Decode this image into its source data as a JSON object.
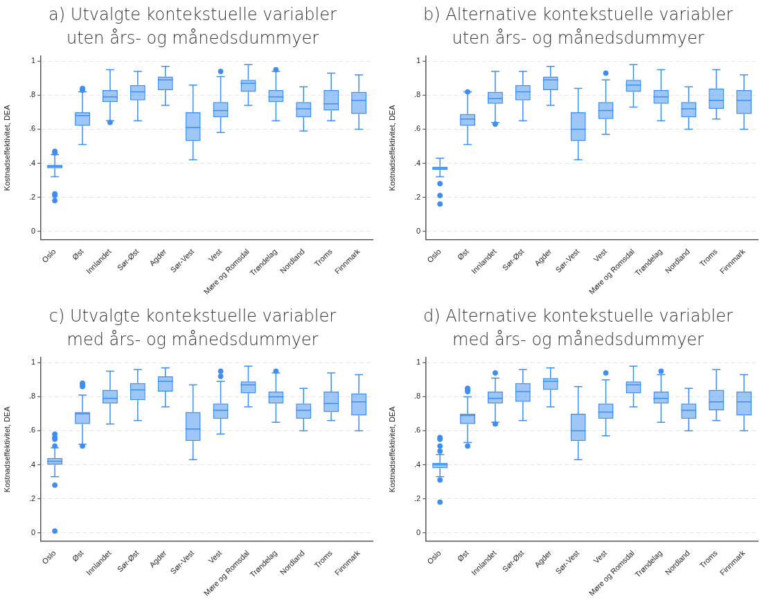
{
  "chart_data": [
    {
      "type": "box",
      "title": "a) Utvalgte kontekstuelle variabler uten års- og månedsdummyer",
      "ylabel": "Kostnadseffektivitet, DEA",
      "color": "#3d8ef0",
      "grid": "y",
      "ylim": [
        -0.05,
        1.03
      ],
      "yticks": [
        {
          "value": 0,
          "label": "0"
        },
        {
          "value": 0.2,
          "label": ".2"
        },
        {
          "value": 0.4,
          "label": ".4"
        },
        {
          "value": 0.6,
          "label": ".6"
        },
        {
          "value": 0.8,
          "label": ".8"
        },
        {
          "value": 1,
          "label": "1"
        }
      ],
      "categories": [
        "Oslo",
        "Øst",
        "Innlandet",
        "Sør-Øst",
        "Agder",
        "Sør-Vest",
        "Vest",
        "Møre og Romsdal",
        "Trøndelag",
        "Nordland",
        "Troms",
        "Finnmark"
      ],
      "boxes": [
        {
          "low": 0.32,
          "q1": 0.37,
          "median": 0.38,
          "q3": 0.39,
          "high": 0.45,
          "outliers": [
            0.47,
            0.46,
            0.22,
            0.21,
            0.18
          ]
        },
        {
          "low": 0.51,
          "q1": 0.62,
          "median": 0.68,
          "q3": 0.7,
          "high": 0.82,
          "outliers": [
            0.84,
            0.83
          ]
        },
        {
          "low": 0.65,
          "q1": 0.76,
          "median": 0.79,
          "q3": 0.83,
          "high": 0.95,
          "outliers": [
            0.64
          ]
        },
        {
          "low": 0.65,
          "q1": 0.77,
          "median": 0.82,
          "q3": 0.86,
          "high": 0.94
        },
        {
          "low": 0.74,
          "q1": 0.83,
          "median": 0.89,
          "q3": 0.91,
          "high": 0.97
        },
        {
          "low": 0.42,
          "q1": 0.53,
          "median": 0.61,
          "q3": 0.7,
          "high": 0.86
        },
        {
          "low": 0.58,
          "q1": 0.67,
          "median": 0.71,
          "q3": 0.76,
          "high": 0.91,
          "outliers": [
            0.94
          ]
        },
        {
          "low": 0.74,
          "q1": 0.82,
          "median": 0.87,
          "q3": 0.89,
          "high": 0.98
        },
        {
          "low": 0.65,
          "q1": 0.76,
          "median": 0.79,
          "q3": 0.83,
          "high": 0.94,
          "outliers": [
            0.95
          ]
        },
        {
          "low": 0.59,
          "q1": 0.67,
          "median": 0.72,
          "q3": 0.76,
          "high": 0.85
        },
        {
          "low": 0.65,
          "q1": 0.71,
          "median": 0.75,
          "q3": 0.83,
          "high": 0.93
        },
        {
          "low": 0.6,
          "q1": 0.69,
          "median": 0.77,
          "q3": 0.82,
          "high": 0.92
        }
      ]
    },
    {
      "type": "box",
      "title": "b) Alternative kontekstuelle variabler uten års- og månedsdummyer",
      "ylabel": "Kostnadseffektivitet, DEA",
      "color": "#3d8ef0",
      "grid": "y",
      "ylim": [
        -0.05,
        1.03
      ],
      "yticks": [
        {
          "value": 0,
          "label": "0"
        },
        {
          "value": 0.2,
          "label": ".2"
        },
        {
          "value": 0.4,
          "label": ".4"
        },
        {
          "value": 0.6,
          "label": ".6"
        },
        {
          "value": 0.8,
          "label": ".8"
        },
        {
          "value": 1,
          "label": "1"
        }
      ],
      "categories": [
        "Oslo",
        "Øst",
        "Innlandet",
        "Sør-Øst",
        "Agder",
        "Sør-Vest",
        "Vest",
        "Møre og Romsdal",
        "Trøndelag",
        "Nordland",
        "Troms",
        "Finnmark"
      ],
      "boxes": [
        {
          "low": 0.32,
          "q1": 0.36,
          "median": 0.37,
          "q3": 0.38,
          "high": 0.43,
          "outliers": [
            0.28,
            0.21,
            0.16
          ]
        },
        {
          "low": 0.51,
          "q1": 0.62,
          "median": 0.66,
          "q3": 0.69,
          "high": 0.82,
          "outliers": [
            0.82
          ]
        },
        {
          "low": 0.64,
          "q1": 0.75,
          "median": 0.78,
          "q3": 0.82,
          "high": 0.94,
          "outliers": [
            0.63
          ]
        },
        {
          "low": 0.65,
          "q1": 0.77,
          "median": 0.82,
          "q3": 0.86,
          "high": 0.94
        },
        {
          "low": 0.74,
          "q1": 0.83,
          "median": 0.89,
          "q3": 0.91,
          "high": 0.97
        },
        {
          "low": 0.42,
          "q1": 0.53,
          "median": 0.6,
          "q3": 0.7,
          "high": 0.84
        },
        {
          "low": 0.57,
          "q1": 0.66,
          "median": 0.71,
          "q3": 0.76,
          "high": 0.89,
          "outliers": [
            0.93
          ]
        },
        {
          "low": 0.73,
          "q1": 0.82,
          "median": 0.86,
          "q3": 0.89,
          "high": 0.98
        },
        {
          "low": 0.65,
          "q1": 0.75,
          "median": 0.79,
          "q3": 0.83,
          "high": 0.95
        },
        {
          "low": 0.6,
          "q1": 0.67,
          "median": 0.72,
          "q3": 0.76,
          "high": 0.85
        },
        {
          "low": 0.66,
          "q1": 0.72,
          "median": 0.77,
          "q3": 0.84,
          "high": 0.95
        },
        {
          "low": 0.6,
          "q1": 0.69,
          "median": 0.77,
          "q3": 0.83,
          "high": 0.92
        }
      ]
    },
    {
      "type": "box",
      "title": "c) Utvalgte kontekstuelle variabler med års- og månedsdummyer",
      "ylabel": "Kostnadseffektivitet, DEA",
      "color": "#3d8ef0",
      "grid": "y",
      "ylim": [
        -0.05,
        1.03
      ],
      "yticks": [
        {
          "value": 0,
          "label": "0"
        },
        {
          "value": 0.2,
          "label": ".2"
        },
        {
          "value": 0.4,
          "label": ".4"
        },
        {
          "value": 0.6,
          "label": ".6"
        },
        {
          "value": 0.8,
          "label": ".8"
        },
        {
          "value": 1,
          "label": "1"
        }
      ],
      "categories": [
        "Oslo",
        "Øst",
        "Innlandet",
        "Sør-Øst",
        "Agder",
        "Sør-Vest",
        "Vest",
        "Møre og Romsdal",
        "Trøndelag",
        "Nordland",
        "Troms",
        "Finnmark"
      ],
      "boxes": [
        {
          "low": 0.33,
          "q1": 0.4,
          "median": 0.42,
          "q3": 0.44,
          "high": 0.5,
          "outliers": [
            0.58,
            0.56,
            0.55,
            0.51,
            0.28,
            0.01
          ]
        },
        {
          "low": 0.52,
          "q1": 0.64,
          "median": 0.7,
          "q3": 0.71,
          "high": 0.81,
          "outliers": [
            0.88,
            0.87,
            0.86,
            0.51
          ]
        },
        {
          "low": 0.64,
          "q1": 0.76,
          "median": 0.79,
          "q3": 0.84,
          "high": 0.95
        },
        {
          "low": 0.66,
          "q1": 0.78,
          "median": 0.84,
          "q3": 0.88,
          "high": 0.96
        },
        {
          "low": 0.74,
          "q1": 0.83,
          "median": 0.89,
          "q3": 0.92,
          "high": 0.97
        },
        {
          "low": 0.43,
          "q1": 0.54,
          "median": 0.61,
          "q3": 0.71,
          "high": 0.87
        },
        {
          "low": 0.58,
          "q1": 0.67,
          "median": 0.72,
          "q3": 0.76,
          "high": 0.89,
          "outliers": [
            0.95,
            0.92
          ]
        },
        {
          "low": 0.74,
          "q1": 0.82,
          "median": 0.87,
          "q3": 0.89,
          "high": 0.98
        },
        {
          "low": 0.65,
          "q1": 0.76,
          "median": 0.8,
          "q3": 0.83,
          "high": 0.94,
          "outliers": [
            0.95
          ]
        },
        {
          "low": 0.6,
          "q1": 0.67,
          "median": 0.72,
          "q3": 0.76,
          "high": 0.85
        },
        {
          "low": 0.66,
          "q1": 0.71,
          "median": 0.76,
          "q3": 0.83,
          "high": 0.94
        },
        {
          "low": 0.6,
          "q1": 0.69,
          "median": 0.77,
          "q3": 0.82,
          "high": 0.93
        }
      ]
    },
    {
      "type": "box",
      "title": "d) Alternative kontekstuelle variabler med års- og månedsdummyer",
      "ylabel": "Kostnadseffektivitet, DEA",
      "color": "#3d8ef0",
      "grid": "y",
      "ylim": [
        -0.05,
        1.03
      ],
      "yticks": [
        {
          "value": 0,
          "label": "0"
        },
        {
          "value": 0.2,
          "label": ".2"
        },
        {
          "value": 0.4,
          "label": ".4"
        },
        {
          "value": 0.6,
          "label": ".6"
        },
        {
          "value": 0.8,
          "label": ".8"
        },
        {
          "value": 1,
          "label": "1"
        }
      ],
      "categories": [
        "Oslo",
        "Øst",
        "Innlandet",
        "Sør-Øst",
        "Agder",
        "Sør-Vest",
        "Vest",
        "Møre og Romsdal",
        "Trøndelag",
        "Nordland",
        "Troms",
        "Finnmark"
      ],
      "boxes": [
        {
          "low": 0.33,
          "q1": 0.38,
          "median": 0.4,
          "q3": 0.41,
          "high": 0.46,
          "outliers": [
            0.56,
            0.55,
            0.51,
            0.48,
            0.31,
            0.18
          ]
        },
        {
          "low": 0.53,
          "q1": 0.64,
          "median": 0.69,
          "q3": 0.7,
          "high": 0.8,
          "outliers": [
            0.85,
            0.84,
            0.83,
            0.51
          ]
        },
        {
          "low": 0.65,
          "q1": 0.76,
          "median": 0.79,
          "q3": 0.83,
          "high": 0.91,
          "outliers": [
            0.94,
            0.64
          ]
        },
        {
          "low": 0.66,
          "q1": 0.77,
          "median": 0.83,
          "q3": 0.88,
          "high": 0.96
        },
        {
          "low": 0.74,
          "q1": 0.84,
          "median": 0.89,
          "q3": 0.91,
          "high": 0.97
        },
        {
          "low": 0.43,
          "q1": 0.54,
          "median": 0.6,
          "q3": 0.7,
          "high": 0.86
        },
        {
          "low": 0.57,
          "q1": 0.67,
          "median": 0.71,
          "q3": 0.76,
          "high": 0.9,
          "outliers": [
            0.94
          ]
        },
        {
          "low": 0.74,
          "q1": 0.82,
          "median": 0.87,
          "q3": 0.89,
          "high": 0.98
        },
        {
          "low": 0.65,
          "q1": 0.76,
          "median": 0.79,
          "q3": 0.83,
          "high": 0.93,
          "outliers": [
            0.95
          ]
        },
        {
          "low": 0.6,
          "q1": 0.67,
          "median": 0.72,
          "q3": 0.76,
          "high": 0.85
        },
        {
          "low": 0.66,
          "q1": 0.72,
          "median": 0.77,
          "q3": 0.84,
          "high": 0.96
        },
        {
          "low": 0.6,
          "q1": 0.69,
          "median": 0.77,
          "q3": 0.83,
          "high": 0.93
        }
      ]
    }
  ]
}
